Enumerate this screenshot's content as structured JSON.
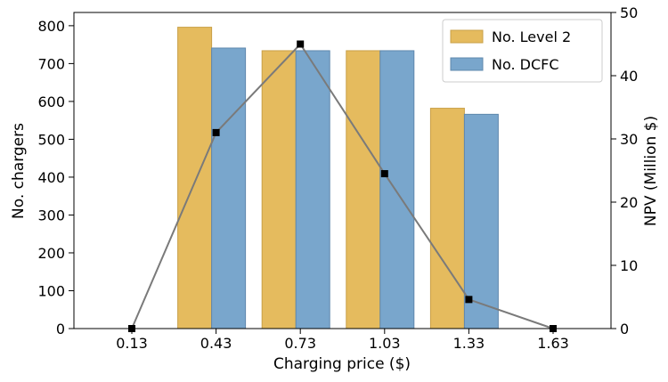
{
  "chart_data": {
    "type": "bar",
    "categories": [
      "0.13",
      "0.43",
      "0.73",
      "1.03",
      "1.33",
      "1.63"
    ],
    "series": [
      {
        "name": "No. Level 2",
        "values": [
          0,
          796,
          734,
          734,
          582,
          0
        ],
        "color": "#e5bb5e",
        "axis": "left"
      },
      {
        "name": "No. DCFC",
        "values": [
          0,
          741,
          734,
          734,
          566,
          0
        ],
        "color": "#79a6cc",
        "axis": "left"
      },
      {
        "name": "",
        "type": "line",
        "values": [
          0,
          31,
          45,
          24.5,
          4.6,
          0
        ],
        "color": "#7a7a7a",
        "axis": "right"
      }
    ],
    "title": "",
    "xlabel": "Charging price ($)",
    "ylabel": "No. chargers",
    "y2label": "NPV (Million $)",
    "ylim": [
      0,
      835
    ],
    "y2lim": [
      0,
      50
    ],
    "yticks": [
      "0",
      "100",
      "200",
      "300",
      "400",
      "500",
      "600",
      "700",
      "800"
    ],
    "y2ticks": [
      "0",
      "10",
      "20",
      "30",
      "40",
      "50"
    ],
    "legend_position": "top-right",
    "grid": false
  }
}
